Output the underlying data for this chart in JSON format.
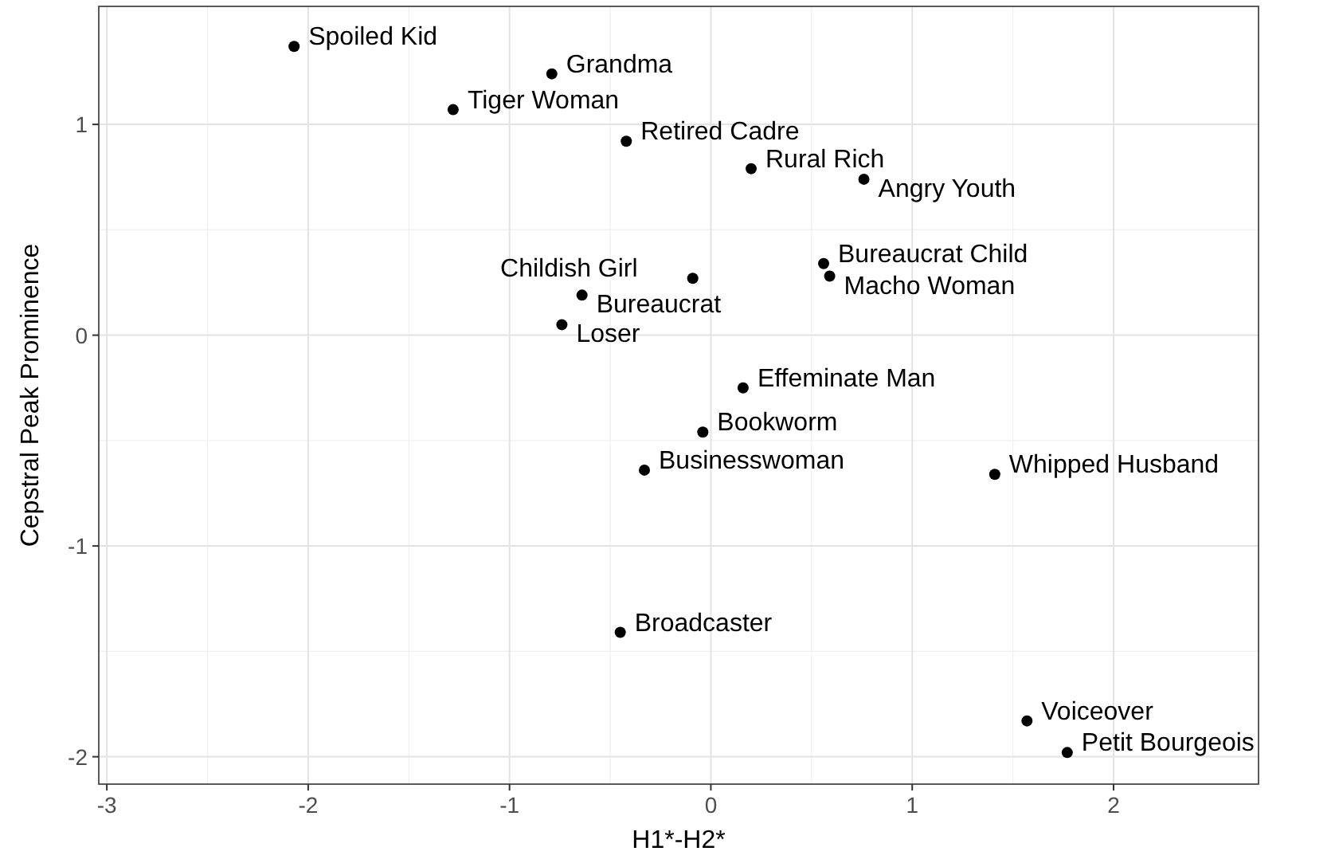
{
  "chart_data": {
    "type": "scatter",
    "xlabel": "H1*-H2*",
    "ylabel": "Cepstral Peak Prominence",
    "color": "#000000",
    "marker": "circle",
    "grid": true,
    "x": [
      -2.07,
      -0.79,
      -1.28,
      -0.42,
      0.2,
      0.76,
      0.56,
      0.59,
      -0.09,
      -0.64,
      -0.74,
      0.16,
      -0.04,
      -0.33,
      1.41,
      -0.45,
      1.57,
      1.77
    ],
    "values": [
      1.37,
      1.24,
      1.07,
      0.92,
      0.79,
      0.74,
      0.34,
      0.28,
      0.27,
      0.19,
      0.05,
      -0.25,
      -0.46,
      -0.64,
      -0.66,
      -1.41,
      -1.83,
      -1.98
    ],
    "xlim": [
      -3.04,
      2.72
    ],
    "ylim": [
      -2.13,
      1.56
    ],
    "xticks": [
      -3,
      -2,
      -1,
      0,
      1,
      2
    ],
    "yticks": [
      -2,
      -1,
      0,
      1
    ],
    "annotations": [
      {
        "text": "Spoiled Kid",
        "x": -2.07,
        "y": 1.37
      },
      {
        "text": "Grandma",
        "x": -0.79,
        "y": 1.24
      },
      {
        "text": "Tiger Woman",
        "x": -1.28,
        "y": 1.07
      },
      {
        "text": "Retired Cadre",
        "x": -0.42,
        "y": 0.92
      },
      {
        "text": "Rural Rich",
        "x": 0.2,
        "y": 0.79
      },
      {
        "text": "Angry Youth",
        "x": 0.76,
        "y": 0.74
      },
      {
        "text": "Bureaucrat Child",
        "x": 0.56,
        "y": 0.34
      },
      {
        "text": "Macho Woman",
        "x": 0.59,
        "y": 0.28
      },
      {
        "text": "Childish Girl",
        "x": -0.09,
        "y": 0.27
      },
      {
        "text": "Bureaucrat",
        "x": -0.64,
        "y": 0.19
      },
      {
        "text": "Loser",
        "x": -0.74,
        "y": 0.05
      },
      {
        "text": "Effeminate Man",
        "x": 0.16,
        "y": -0.25
      },
      {
        "text": "Bookworm",
        "x": -0.04,
        "y": -0.46
      },
      {
        "text": "Businesswoman",
        "x": -0.33,
        "y": -0.64
      },
      {
        "text": "Whipped Husband",
        "x": 1.41,
        "y": -0.66
      },
      {
        "text": "Broadcaster",
        "x": -0.45,
        "y": -1.41
      },
      {
        "text": "Voiceover",
        "x": 1.57,
        "y": -1.83
      },
      {
        "text": "Petit Bourgeois",
        "x": 1.77,
        "y": -1.98
      }
    ]
  }
}
